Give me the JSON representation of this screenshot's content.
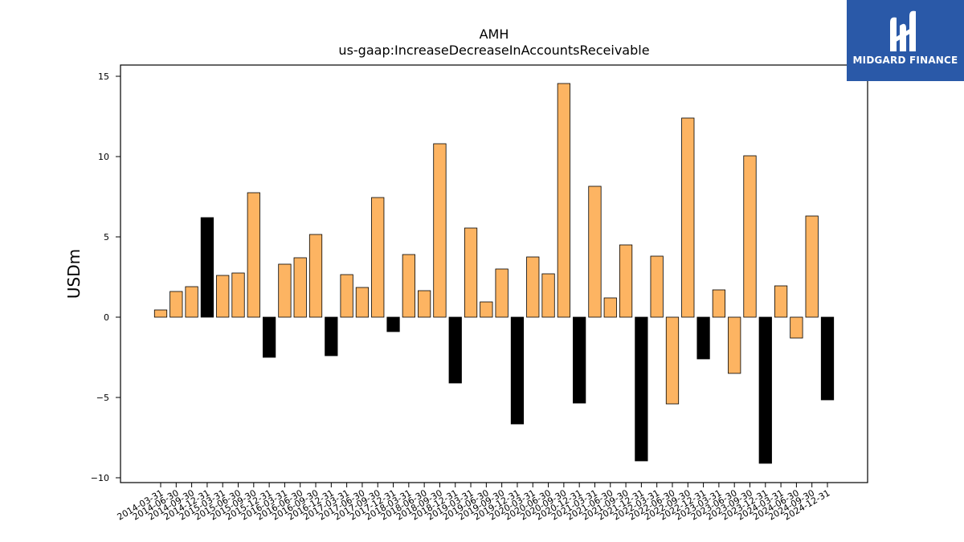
{
  "brand": {
    "name": "MIDGARD FINANCE",
    "logo_icon": "midgard-logo-icon",
    "bg_color": "#2a59a8"
  },
  "chart_data": {
    "type": "bar",
    "title": "AMH",
    "subtitle": "us-gaap:IncreaseDecreaseInAccountsReceivable",
    "xlabel": "",
    "ylabel": "USDm",
    "ylim": [
      -10.3,
      15.7
    ],
    "yticks": [
      -10,
      -5,
      0,
      5,
      10,
      15
    ],
    "ytick_labels": [
      "−10",
      "−5",
      "0",
      "5",
      "10",
      "15"
    ],
    "grid": false,
    "colors": {
      "quarter": "#fdb462",
      "annual": "#000000",
      "edge": "#000000"
    },
    "categories": [
      "2014-03-31",
      "2014-06-30",
      "2014-09-30",
      "2014-12-31",
      "2015-03-31",
      "2015-06-30",
      "2015-09-30",
      "2015-12-31",
      "2016-03-31",
      "2016-06-30",
      "2016-09-30",
      "2016-12-31",
      "2017-03-31",
      "2017-06-30",
      "2017-09-30",
      "2017-12-31",
      "2018-03-31",
      "2018-06-30",
      "2018-09-30",
      "2018-12-31",
      "2019-03-31",
      "2019-06-30",
      "2019-09-30",
      "2019-12-31",
      "2020-03-31",
      "2020-06-30",
      "2020-09-30",
      "2020-12-31",
      "2021-03-31",
      "2021-06-30",
      "2021-09-30",
      "2021-12-31",
      "2022-03-31",
      "2022-06-30",
      "2022-09-30",
      "2022-12-31",
      "2023-03-31",
      "2023-06-30",
      "2023-09-30",
      "2023-12-31",
      "2024-03-31",
      "2024-06-30",
      "2024-09-30",
      "2024-12-31"
    ],
    "values": [
      0.45,
      1.6,
      1.9,
      6.2,
      2.6,
      2.75,
      7.75,
      -2.5,
      3.3,
      3.7,
      5.15,
      -2.4,
      2.65,
      1.85,
      7.45,
      -0.9,
      3.9,
      1.65,
      10.8,
      -4.1,
      5.55,
      0.95,
      3.0,
      -6.65,
      3.75,
      2.7,
      14.55,
      -5.35,
      8.15,
      1.2,
      4.5,
      -8.95,
      3.8,
      -5.4,
      12.4,
      -2.6,
      1.7,
      -3.5,
      10.05,
      -9.1,
      1.95,
      -1.3,
      6.3,
      -5.15
    ],
    "bar_kind": [
      "q",
      "q",
      "q",
      "a",
      "q",
      "q",
      "q",
      "a",
      "q",
      "q",
      "q",
      "a",
      "q",
      "q",
      "q",
      "a",
      "q",
      "q",
      "q",
      "a",
      "q",
      "q",
      "q",
      "a",
      "q",
      "q",
      "q",
      "a",
      "q",
      "q",
      "q",
      "a",
      "q",
      "q",
      "q",
      "a",
      "q",
      "q",
      "q",
      "a",
      "q",
      "q",
      "q",
      "a"
    ]
  }
}
